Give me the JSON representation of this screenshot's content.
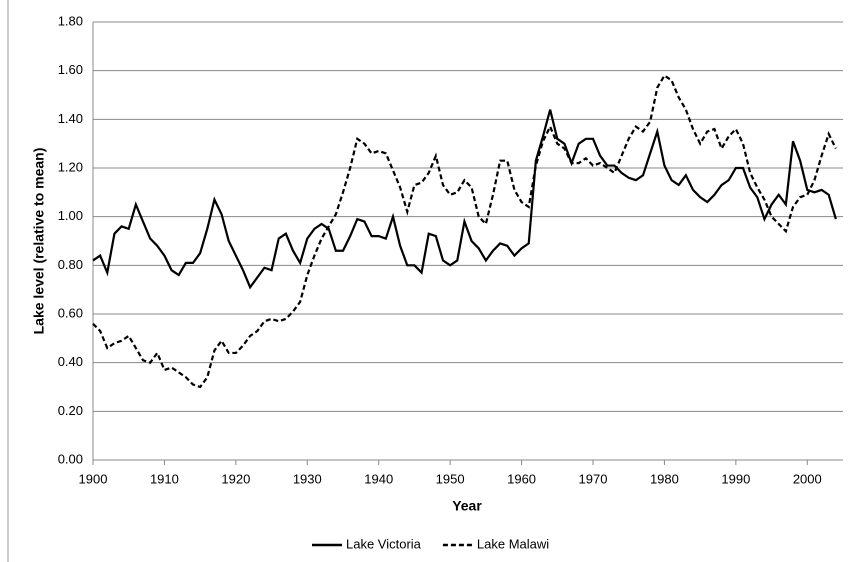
{
  "chart_data": {
    "type": "line",
    "y_label": "Lake level (relative to mean)",
    "x_label": "Year",
    "x": [
      1900,
      1901,
      1902,
      1903,
      1904,
      1905,
      1906,
      1907,
      1908,
      1909,
      1910,
      1911,
      1912,
      1913,
      1914,
      1915,
      1916,
      1917,
      1918,
      1919,
      1920,
      1921,
      1922,
      1923,
      1924,
      1925,
      1926,
      1927,
      1928,
      1929,
      1930,
      1931,
      1932,
      1933,
      1934,
      1935,
      1936,
      1937,
      1938,
      1939,
      1940,
      1941,
      1942,
      1943,
      1944,
      1945,
      1946,
      1947,
      1948,
      1949,
      1950,
      1951,
      1952,
      1953,
      1954,
      1955,
      1956,
      1957,
      1958,
      1959,
      1960,
      1961,
      1962,
      1963,
      1964,
      1965,
      1966,
      1967,
      1968,
      1969,
      1970,
      1971,
      1972,
      1973,
      1974,
      1975,
      1976,
      1977,
      1978,
      1979,
      1980,
      1981,
      1982,
      1983,
      1984,
      1985,
      1986,
      1987,
      1988,
      1989,
      1990,
      1991,
      1992,
      1993,
      1994,
      1995,
      1996,
      1997,
      1998,
      1999,
      2000,
      2001,
      2002,
      2003,
      2004
    ],
    "series": [
      {
        "name": "Lake Victoria",
        "color": "#000000",
        "dash": false,
        "values": [
          0.82,
          0.84,
          0.77,
          0.93,
          0.96,
          0.95,
          1.05,
          0.98,
          0.91,
          0.88,
          0.84,
          0.78,
          0.76,
          0.81,
          0.81,
          0.85,
          0.95,
          1.07,
          1.01,
          0.9,
          0.84,
          0.78,
          0.71,
          0.75,
          0.79,
          0.78,
          0.91,
          0.93,
          0.86,
          0.81,
          0.91,
          0.95,
          0.97,
          0.95,
          0.86,
          0.86,
          0.92,
          0.99,
          0.98,
          0.92,
          0.92,
          0.91,
          1.0,
          0.88,
          0.8,
          0.8,
          0.77,
          0.93,
          0.92,
          0.82,
          0.8,
          0.82,
          0.98,
          0.9,
          0.87,
          0.82,
          0.86,
          0.89,
          0.88,
          0.84,
          0.87,
          0.89,
          1.23,
          1.33,
          1.44,
          1.32,
          1.3,
          1.22,
          1.3,
          1.32,
          1.32,
          1.25,
          1.21,
          1.21,
          1.18,
          1.16,
          1.15,
          1.17,
          1.26,
          1.35,
          1.21,
          1.15,
          1.13,
          1.17,
          1.11,
          1.08,
          1.06,
          1.09,
          1.13,
          1.15,
          1.2,
          1.2,
          1.12,
          1.08,
          0.99,
          1.05,
          1.09,
          1.05,
          1.31,
          1.23,
          1.11,
          1.1,
          1.11,
          1.09,
          0.99
        ]
      },
      {
        "name": "Lake Malawi",
        "color": "#000000",
        "dash": true,
        "values": [
          0.56,
          0.53,
          0.46,
          0.48,
          0.49,
          0.51,
          0.46,
          0.41,
          0.4,
          0.44,
          0.37,
          0.38,
          0.36,
          0.34,
          0.31,
          0.3,
          0.34,
          0.45,
          0.49,
          0.44,
          0.44,
          0.47,
          0.51,
          0.53,
          0.57,
          0.58,
          0.57,
          0.58,
          0.61,
          0.65,
          0.76,
          0.84,
          0.91,
          0.96,
          1.01,
          1.1,
          1.2,
          1.32,
          1.3,
          1.26,
          1.27,
          1.26,
          1.19,
          1.12,
          1.02,
          1.13,
          1.14,
          1.18,
          1.25,
          1.13,
          1.09,
          1.1,
          1.15,
          1.12,
          1.0,
          0.97,
          1.09,
          1.23,
          1.23,
          1.11,
          1.06,
          1.04,
          1.21,
          1.31,
          1.37,
          1.3,
          1.28,
          1.22,
          1.22,
          1.24,
          1.21,
          1.22,
          1.2,
          1.18,
          1.25,
          1.32,
          1.37,
          1.35,
          1.39,
          1.53,
          1.58,
          1.56,
          1.49,
          1.44,
          1.36,
          1.3,
          1.35,
          1.36,
          1.28,
          1.33,
          1.36,
          1.3,
          1.18,
          1.12,
          1.07,
          1.0,
          0.97,
          0.94,
          1.04,
          1.08,
          1.09,
          1.15,
          1.25,
          1.34,
          1.28
        ]
      }
    ],
    "xlim": [
      1900,
      2005
    ],
    "xticks": [
      1900,
      1910,
      1920,
      1930,
      1940,
      1950,
      1960,
      1970,
      1980,
      1990,
      2000
    ],
    "ylim": [
      0,
      1.8
    ],
    "yticks": [
      {
        "value": 0,
        "label": "0.00"
      },
      {
        "value": 0.2,
        "label": "0.20"
      },
      {
        "value": 0.4,
        "label": "0.40"
      },
      {
        "value": 0.6,
        "label": "0.60"
      },
      {
        "value": 0.8,
        "label": "0.80"
      },
      {
        "value": 1,
        "label": "1.00"
      },
      {
        "value": 1.2,
        "label": "1.20"
      },
      {
        "value": 1.4,
        "label": "1.40"
      },
      {
        "value": 1.6,
        "label": "1.60"
      },
      {
        "value": 1.8,
        "label": "1.80"
      }
    ],
    "grid": true,
    "legend": "bottom"
  }
}
